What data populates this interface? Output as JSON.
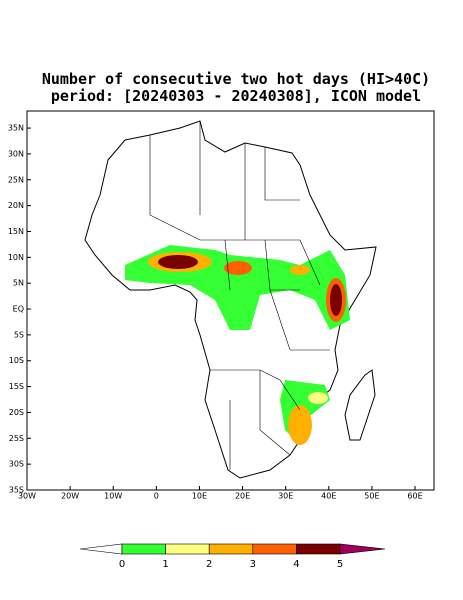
{
  "title": [
    "Number of consecutive two hot days (HI>40C)",
    "period: [20240303 - 20240308], ICON model"
  ],
  "map": {
    "xlim": [
      -30,
      64.4
    ],
    "ylim": [
      -35,
      38.3
    ],
    "xticks": [
      {
        "value": -30,
        "label": "30W"
      },
      {
        "value": -20,
        "label": "20W"
      },
      {
        "value": -10,
        "label": "10W"
      },
      0,
      {
        "value": 10,
        "label": "10E"
      },
      {
        "value": 20,
        "label": "20E"
      },
      {
        "value": 30,
        "label": "30E"
      },
      {
        "value": 40,
        "label": "40E"
      },
      {
        "value": 50,
        "label": "50E"
      },
      {
        "value": 60,
        "label": "60E"
      }
    ],
    "yticks": [
      {
        "value": 35,
        "label": "35N"
      },
      {
        "value": 30,
        "label": "30N"
      },
      {
        "value": 25,
        "label": "25N"
      },
      {
        "value": 20,
        "label": "20N"
      },
      {
        "value": 15,
        "label": "15N"
      },
      {
        "value": 10,
        "label": "10N"
      },
      {
        "value": 5,
        "label": "5N"
      },
      {
        "value": 0,
        "label": "EQ"
      },
      {
        "value": -5,
        "label": "5S"
      },
      {
        "value": -10,
        "label": "10S"
      },
      {
        "value": -15,
        "label": "15S"
      },
      {
        "value": -20,
        "label": "20S"
      },
      {
        "value": -25,
        "label": "25S"
      },
      {
        "value": -30,
        "label": "30S"
      },
      {
        "value": -35,
        "label": "35S"
      }
    ]
  },
  "colorbar": {
    "levels": [
      0,
      1,
      2,
      3,
      4,
      5
    ],
    "colors": [
      "#ffffff",
      "#33ff33",
      "#ffff80",
      "#ffb000",
      "#ff6000",
      "#7a0000",
      "#a0005a"
    ]
  }
}
